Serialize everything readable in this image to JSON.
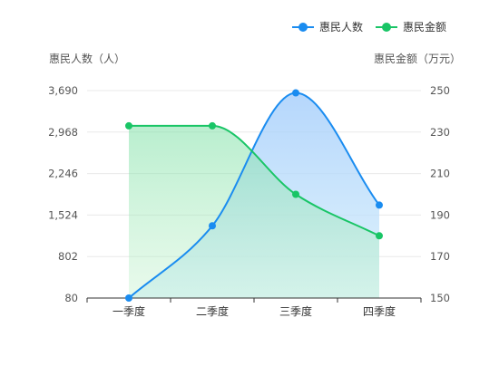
{
  "chart_data": {
    "type": "line",
    "categories": [
      "一季度",
      "二季度",
      "三季度",
      "四季度"
    ],
    "series": [
      {
        "name": "惠民人数",
        "axis": "left",
        "color": "#1a8cf0",
        "area": true,
        "values": [
          80,
          1337,
          3650,
          1697
        ]
      },
      {
        "name": "惠民金额",
        "axis": "right",
        "color": "#19c566",
        "area": true,
        "values": [
          233,
          233,
          200,
          180
        ]
      }
    ],
    "y_left": {
      "label": "惠民人数（人）",
      "ticks": [
        "3,690",
        "2,968",
        "2,246",
        "1,524",
        "802",
        "80"
      ],
      "range": [
        80,
        3690
      ]
    },
    "y_right": {
      "label": "惠民金额（万元）",
      "ticks": [
        "250",
        "230",
        "210",
        "190",
        "170",
        "150"
      ],
      "range": [
        150,
        250
      ]
    },
    "legend_position": "top-right",
    "grid": true
  }
}
